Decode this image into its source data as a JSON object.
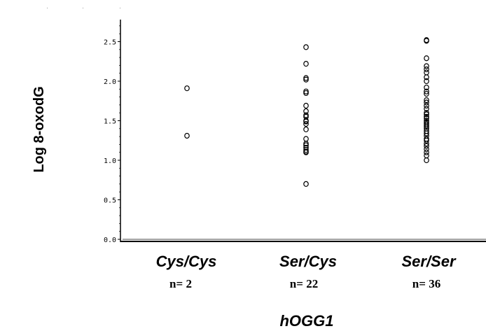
{
  "chart_data": {
    "type": "scatter",
    "title": "",
    "xlabel": "hOGG1",
    "ylabel": "Log 8-oxodG",
    "ylim": [
      0,
      2.75
    ],
    "y_ticks": [
      "0.0",
      "0.5",
      "1.0",
      "1.5",
      "2.0",
      "2.5"
    ],
    "y_tick_values": [
      0,
      0.5,
      1.0,
      1.5,
      2.0,
      2.5
    ],
    "grid": false,
    "categories": [
      "Cys/Cys",
      "Ser/Cys",
      "Ser/Ser"
    ],
    "counts": [
      "n= 2",
      "n= 22",
      "n= 36"
    ],
    "series": [
      {
        "category": "Cys/Cys",
        "values": [
          1.91,
          1.31
        ]
      },
      {
        "category": "Ser/Cys",
        "values": [
          2.43,
          2.22,
          2.04,
          2.02,
          1.87,
          1.85,
          1.69,
          1.62,
          1.57,
          1.5,
          1.49,
          1.39,
          1.27,
          1.21,
          1.19,
          1.16,
          1.13,
          1.11,
          1.1,
          0.7,
          1.55,
          1.46
        ]
      },
      {
        "category": "Ser/Ser",
        "values": [
          2.52,
          2.51,
          2.29,
          2.19,
          2.15,
          2.11,
          2.05,
          2.0,
          1.92,
          1.87,
          1.84,
          1.76,
          1.73,
          1.69,
          1.65,
          1.6,
          1.58,
          1.55,
          1.53,
          1.5,
          1.48,
          1.46,
          1.44,
          1.42,
          1.4,
          1.37,
          1.34,
          1.31,
          1.27,
          1.25,
          1.21,
          1.18,
          1.14,
          1.1,
          1.06,
          1.0
        ]
      }
    ]
  }
}
